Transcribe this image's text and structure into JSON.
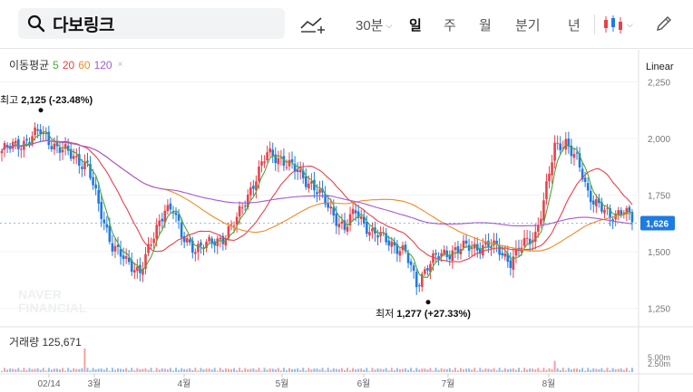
{
  "search": {
    "query": "다보링크"
  },
  "periods": [
    {
      "label": "30분",
      "active": false
    },
    {
      "label": "일",
      "active": true
    },
    {
      "label": "주",
      "active": false
    },
    {
      "label": "월",
      "active": false
    },
    {
      "label": "분기",
      "active": false
    },
    {
      "label": "년",
      "active": false
    }
  ],
  "ma_legend": {
    "label": "이동평균",
    "items": [
      {
        "period": "5",
        "color": "#49a83a"
      },
      {
        "period": "20",
        "color": "#e8424b"
      },
      {
        "period": "60",
        "color": "#f08a24"
      },
      {
        "period": "120",
        "color": "#a45ad0"
      }
    ],
    "close": "×"
  },
  "scale": "Linear",
  "watermark": [
    "NAVER",
    "FINANCIAL"
  ],
  "colors": {
    "up": "#e8424b",
    "down": "#1e7be0",
    "current_badge": "#1e7be0"
  },
  "chart_data": {
    "type": "candlestick",
    "ylim": [
      1200,
      2320
    ],
    "yticks": [
      "2,250",
      "2,000",
      "1,750",
      "1,500",
      "1,250"
    ],
    "xlabels": [
      "02/14",
      "3월",
      "4월",
      "5월",
      "6월",
      "7월",
      "8월"
    ],
    "current": "1,626",
    "high": {
      "label": "최고",
      "value": "2,125",
      "pct": "(-23.48%)"
    },
    "low": {
      "label": "최저",
      "value": "1,277",
      "pct": "(+27.33%)"
    },
    "volume": {
      "label": "거래량",
      "value": "125,671",
      "ticks": [
        "5.00m",
        "2.50m"
      ]
    }
  }
}
